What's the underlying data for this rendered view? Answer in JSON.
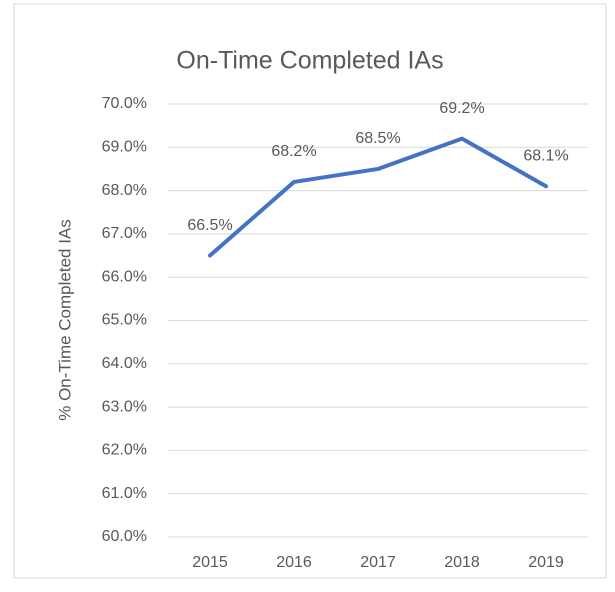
{
  "chart_data": {
    "type": "line",
    "title": "On-Time Completed IAs",
    "y_label": "% On-Time Completed IAs",
    "categories": [
      "2015",
      "2016",
      "2017",
      "2018",
      "2019"
    ],
    "series": [
      {
        "name": "% On-Time Completed IAs",
        "color": "#4472c4",
        "values": [
          66.5,
          68.2,
          68.5,
          69.2,
          68.1
        ],
        "value_labels": [
          "66.5%",
          "68.2%",
          "68.5%",
          "69.2%",
          "68.1%"
        ]
      }
    ],
    "ylim": [
      60,
      70
    ],
    "yticks": [
      {
        "value": 60,
        "label": "60.0%"
      },
      {
        "value": 61,
        "label": "61.0%"
      },
      {
        "value": 62,
        "label": "62.0%"
      },
      {
        "value": 63,
        "label": "63.0%"
      },
      {
        "value": 64,
        "label": "64.0%"
      },
      {
        "value": 65,
        "label": "65.0%"
      },
      {
        "value": 66,
        "label": "66.0%"
      },
      {
        "value": 67,
        "label": "67.0%"
      },
      {
        "value": 68,
        "label": "68.0%"
      },
      {
        "value": 69,
        "label": "69.0%"
      },
      {
        "value": 70,
        "label": "70.0%"
      }
    ],
    "grid": true
  }
}
